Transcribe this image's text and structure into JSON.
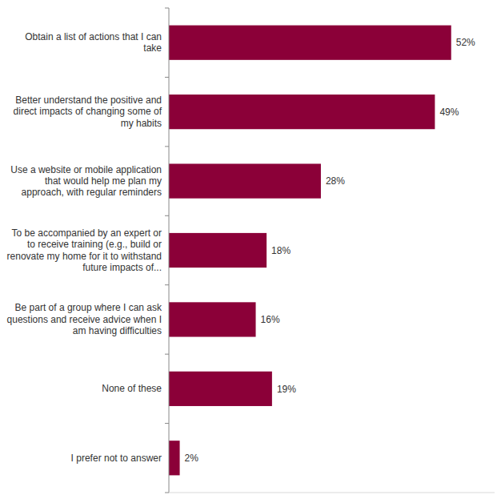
{
  "chart_data": {
    "type": "bar",
    "orientation": "horizontal",
    "categories": [
      "Obtain a list of actions that I can take",
      "Better understand the positive and direct impacts of changing some of my habits",
      "Use a website or mobile application that would help me plan my approach, with regular reminders",
      "To be accompanied by an expert or to receive training (e.g., build or renovate my home for it to withstand future impacts of...",
      "Be part of a group where I can ask questions and receive advice when I am having difficulties",
      "None of these",
      "I prefer not to answer"
    ],
    "values": [
      52,
      49,
      28,
      18,
      16,
      19,
      2
    ],
    "value_labels": [
      "52%",
      "49%",
      "28%",
      "18%",
      "16%",
      "19%",
      "2%"
    ],
    "color": "#8b0038",
    "xlim": [
      0,
      60
    ],
    "data_labels": true,
    "tick_labels": "y",
    "grid": false
  }
}
